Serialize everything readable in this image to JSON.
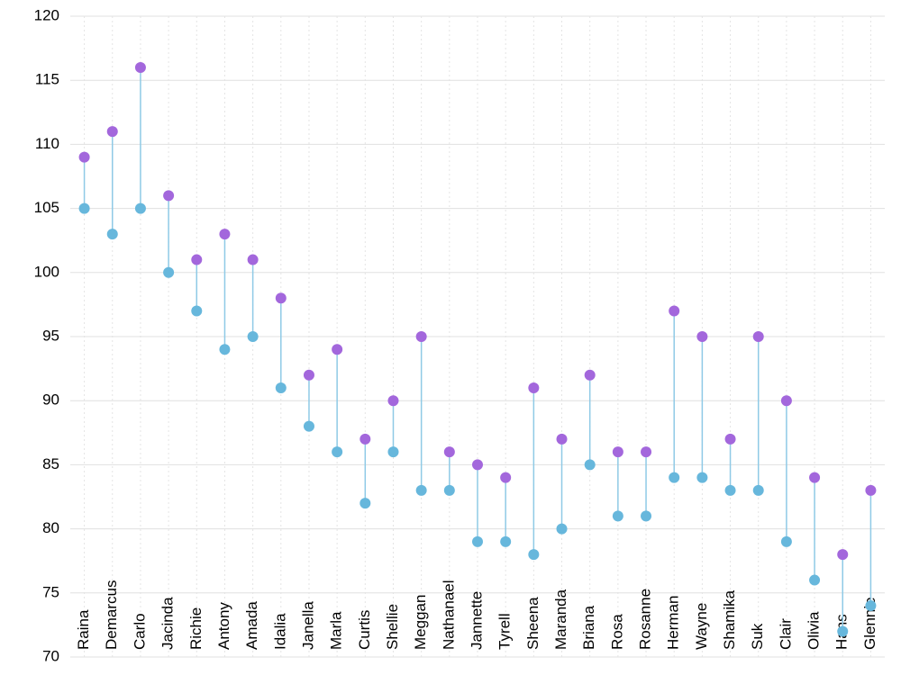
{
  "chart_data": {
    "type": "dumbbell",
    "categories": [
      "Raina",
      "Demarcus",
      "Carlo",
      "Jacinda",
      "Richie",
      "Antony",
      "Amada",
      "Idalia",
      "Janella",
      "Marla",
      "Curtis",
      "Shellie",
      "Meggan",
      "Nathanael",
      "Jannette",
      "Tyrell",
      "Sheena",
      "Maranda",
      "Briana",
      "Rosa",
      "Rosanne",
      "Herman",
      "Wayne",
      "Shamika",
      "Suk",
      "Clair",
      "Olivia",
      "Hans",
      "Glennie"
    ],
    "series": [
      {
        "color": "#67b7dc",
        "values": [
          105,
          103,
          105,
          100,
          97,
          94,
          95,
          91,
          88,
          86,
          82,
          86,
          83,
          83,
          79,
          79,
          78,
          80,
          85,
          81,
          81,
          84,
          84,
          83,
          83,
          79,
          76,
          72,
          74
        ]
      },
      {
        "color": "#a367dc",
        "values": [
          109,
          111,
          116,
          106,
          101,
          103,
          101,
          98,
          92,
          94,
          87,
          90,
          95,
          86,
          85,
          84,
          91,
          87,
          92,
          86,
          86,
          97,
          95,
          87,
          95,
          90,
          84,
          78,
          83
        ]
      }
    ],
    "connector_color": "#8fcae6",
    "ylim": [
      70,
      120
    ],
    "yticks": [
      70,
      75,
      80,
      85,
      90,
      95,
      100,
      105,
      110,
      115,
      120
    ],
    "grid": true
  }
}
